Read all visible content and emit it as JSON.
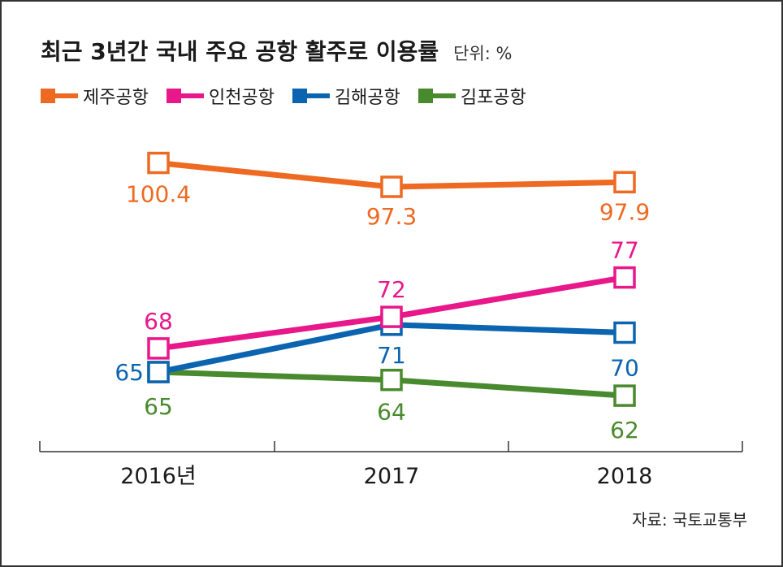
{
  "chart_data": {
    "type": "line",
    "title": "최근 3년간 국내 주요 공항 활주로 이용률",
    "unit_label": "단위: %",
    "categories": [
      "2016년",
      "2017",
      "2018"
    ],
    "series": [
      {
        "name": "제주공항",
        "color": "#ee6a22",
        "values": [
          100.4,
          97.3,
          97.9
        ],
        "labels": [
          "100.4",
          "97.3",
          "97.9"
        ]
      },
      {
        "name": "인천공항",
        "color": "#e8178a",
        "values": [
          68,
          72,
          77
        ],
        "labels": [
          "68",
          "72",
          "77"
        ]
      },
      {
        "name": "김해공항",
        "color": "#0b64b0",
        "values": [
          65,
          71,
          70
        ],
        "labels": [
          "65",
          "71",
          "70"
        ]
      },
      {
        "name": "김포공항",
        "color": "#4a8a2e",
        "values": [
          65,
          64,
          62
        ],
        "labels": [
          "65",
          "64",
          "62"
        ]
      }
    ],
    "legend_position": "top-left",
    "grid": false
  },
  "source": "자료: 국토교통부"
}
